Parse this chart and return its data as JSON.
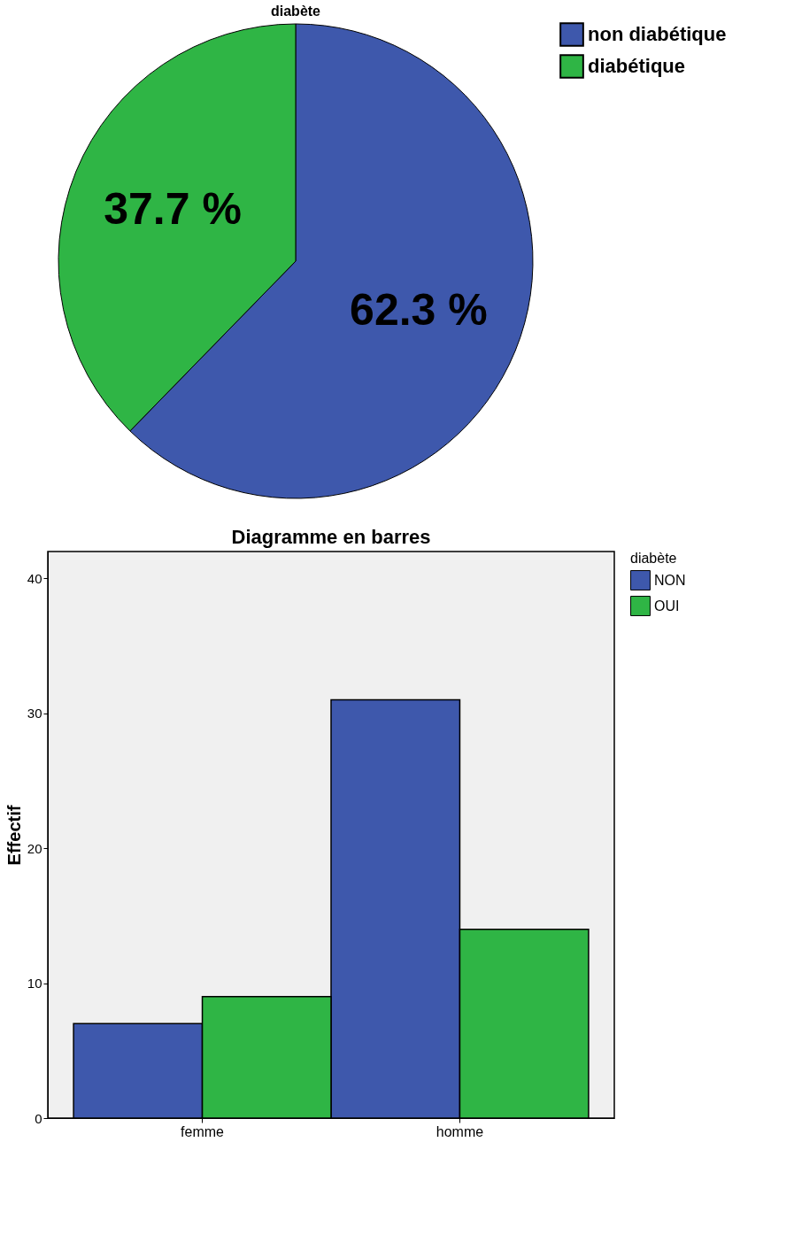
{
  "chart_data": [
    {
      "type": "pie",
      "title": "diabète",
      "categories": [
        "non diabétique",
        "diabétique"
      ],
      "values": [
        62.3,
        37.7
      ],
      "colors": [
        "#3e58ac",
        "#2fb545"
      ],
      "value_labels": [
        "62.3 %",
        "37.7 %"
      ],
      "legend": "top right"
    },
    {
      "type": "bar",
      "title": "Diagramme en barres",
      "ylabel": "Effectif",
      "legend_title": "diabète",
      "categories": [
        "femme",
        "homme"
      ],
      "series": [
        {
          "name": "NON",
          "color": "#3e58ac",
          "values": [
            7,
            31
          ]
        },
        {
          "name": "OUI",
          "color": "#2fb545",
          "values": [
            9,
            14
          ]
        }
      ],
      "ylim": [
        0,
        42
      ],
      "yticks": [
        0,
        10,
        20,
        30,
        40
      ],
      "grid": false,
      "legend": "top right"
    }
  ]
}
